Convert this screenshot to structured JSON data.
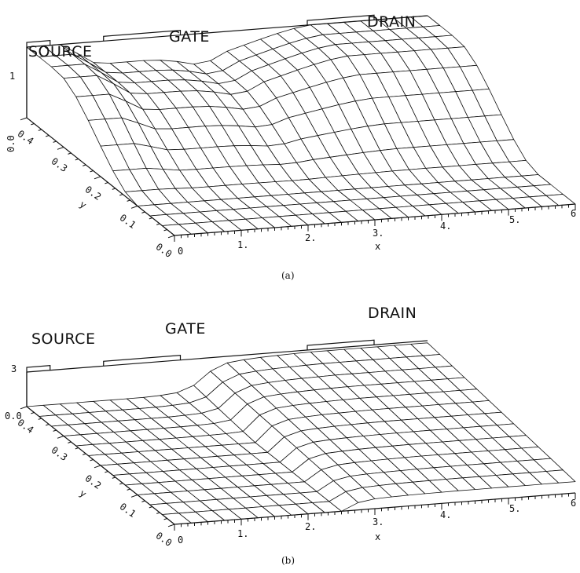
{
  "chart_data": [
    {
      "type": "surface",
      "caption": "(a)",
      "contact_labels": {
        "source": "SOURCE",
        "gate": "GATE",
        "drain": "DRAIN"
      },
      "x_label": "x",
      "y_label": "y",
      "x_ticks": [
        "0",
        "1.",
        "2.",
        "3.",
        "4.",
        "5.",
        "6"
      ],
      "y_ticks": [
        "0.0",
        "0.1",
        "0.2",
        "0.3",
        "0.4"
      ],
      "z_ticks": [
        "1",
        "0.0"
      ],
      "xlim": [
        0,
        6
      ],
      "ylim": [
        0,
        0.4
      ],
      "zlim": [
        0,
        1
      ],
      "surface_profile": {
        "x": [
          0,
          0.3,
          0.6,
          0.9,
          1.2,
          1.5,
          1.8,
          2.1,
          2.4,
          2.6,
          2.8,
          3.0,
          3.3,
          3.6,
          3.9,
          4.2,
          4.5,
          4.8,
          5.1,
          5.4,
          5.7,
          6.0
        ],
        "z_at_top": [
          1.0,
          1.0,
          1.0,
          0.72,
          0.68,
          0.68,
          0.68,
          0.66,
          0.6,
          0.55,
          0.62,
          0.72,
          0.8,
          0.88,
          0.95,
          1.0,
          1.0,
          1.0,
          1.0,
          1.0,
          1.0,
          1.0
        ]
      }
    },
    {
      "type": "surface",
      "caption": "(b)",
      "contact_labels": {
        "source": "SOURCE",
        "gate": "GATE",
        "drain": "DRAIN"
      },
      "x_label": "x",
      "y_label": "y",
      "x_ticks": [
        "0",
        "1.",
        "2.",
        "3.",
        "4.",
        "5.",
        "6"
      ],
      "y_ticks": [
        "0.0",
        "0.1",
        "0.2",
        "0.3",
        "0.4"
      ],
      "z_ticks": [
        "3",
        "0.0"
      ],
      "xlim": [
        0,
        6
      ],
      "ylim": [
        0,
        0.4
      ],
      "zlim": [
        0,
        3.2
      ],
      "surface_profile": {
        "x": [
          0,
          0.3,
          0.6,
          0.9,
          1.2,
          1.5,
          1.8,
          2.1,
          2.4,
          2.6,
          2.8,
          3.0,
          3.3,
          3.6,
          3.9,
          4.2,
          4.5,
          4.8,
          5.1,
          5.4,
          5.7,
          6.0
        ],
        "z_at_top": [
          0,
          0,
          0,
          0,
          0,
          0,
          0,
          0.1,
          0.3,
          1.2,
          2.2,
          2.6,
          2.8,
          2.9,
          2.95,
          3.0,
          3.0,
          3.0,
          3.0,
          3.0,
          3.0,
          3.0
        ]
      }
    }
  ]
}
